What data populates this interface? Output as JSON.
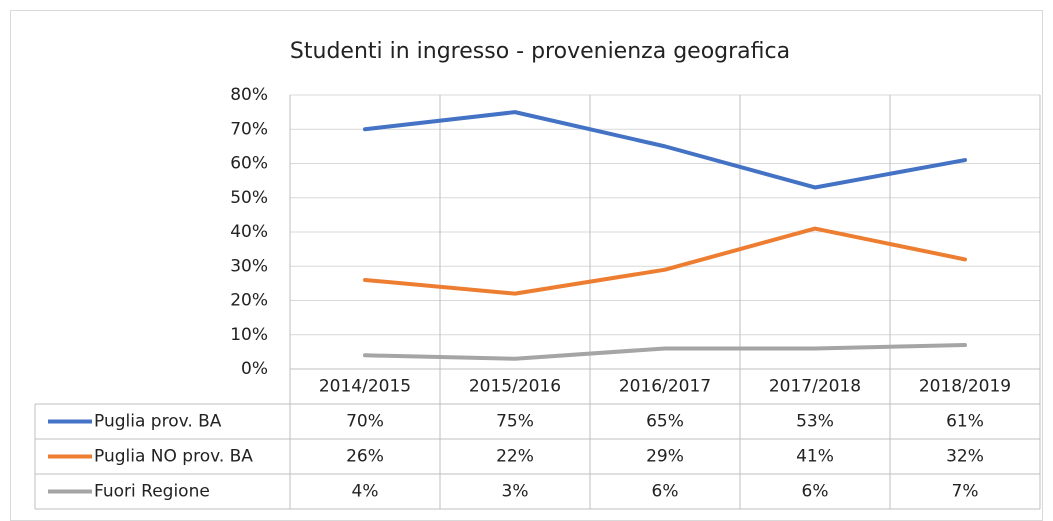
{
  "chart_data": {
    "type": "line",
    "title": "Studenti in ingresso - provenienza geografica",
    "categories": [
      "2014/2015",
      "2015/2016",
      "2016/2017",
      "2017/2018",
      "2018/2019"
    ],
    "series": [
      {
        "name": "Puglia prov. BA",
        "color": "#4472c4",
        "values": [
          70,
          75,
          65,
          53,
          61
        ],
        "value_labels": [
          "70%",
          "75%",
          "65%",
          "53%",
          "61%"
        ]
      },
      {
        "name": "Puglia NO prov. BA",
        "color": "#ed7d31",
        "values": [
          26,
          22,
          29,
          41,
          32
        ],
        "value_labels": [
          "26%",
          "22%",
          "29%",
          "41%",
          "32%"
        ]
      },
      {
        "name": "Fuori Regione",
        "color": "#a5a5a5",
        "values": [
          4,
          3,
          6,
          6,
          7
        ],
        "value_labels": [
          "4%",
          "3%",
          "6%",
          "6%",
          "7%"
        ]
      }
    ],
    "ylim": [
      0,
      80
    ],
    "yticks": [
      {
        "value": 0,
        "label": "0%"
      },
      {
        "value": 10,
        "label": "10%"
      },
      {
        "value": 20,
        "label": "20%"
      },
      {
        "value": 30,
        "label": "30%"
      },
      {
        "value": 40,
        "label": "40%"
      },
      {
        "value": 50,
        "label": "50%"
      },
      {
        "value": 60,
        "label": "60%"
      },
      {
        "value": 70,
        "label": "70%"
      },
      {
        "value": 80,
        "label": "80%"
      }
    ],
    "grid": true
  }
}
